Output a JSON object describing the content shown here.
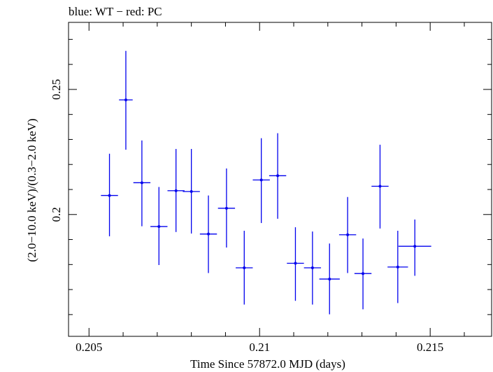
{
  "chart_data": {
    "type": "scatter",
    "title": "blue: WT − red: PC",
    "xlabel": "Time Since 57872.0 MJD (days)",
    "ylabel": "(2.0−10.0 keV)/(0.3−2.0 keV)",
    "xlim": [
      0.2044,
      0.2168
    ],
    "ylim": [
      0.1513,
      0.2768
    ],
    "x_ticks": [
      0.205,
      0.21,
      0.215
    ],
    "x_tick_labels": [
      "0.205",
      "0.21",
      "0.215"
    ],
    "y_ticks": [
      0.2,
      0.25
    ],
    "y_tick_labels": [
      "0.2",
      "0.25"
    ],
    "grid": false,
    "series": [
      {
        "color": "#0000ee",
        "points": [
          {
            "x": 0.2056,
            "y": 0.2076,
            "xerr": 0.00025,
            "ylo": 0.1913,
            "yhi": 0.2243
          },
          {
            "x": 0.20608,
            "y": 0.2458,
            "xerr": 0.0002,
            "ylo": 0.2259,
            "yhi": 0.2654
          },
          {
            "x": 0.20655,
            "y": 0.2127,
            "xerr": 0.00025,
            "ylo": 0.1953,
            "yhi": 0.2296
          },
          {
            "x": 0.20705,
            "y": 0.1952,
            "xerr": 0.00025,
            "ylo": 0.1798,
            "yhi": 0.211
          },
          {
            "x": 0.20755,
            "y": 0.2095,
            "xerr": 0.00025,
            "ylo": 0.193,
            "yhi": 0.2262
          },
          {
            "x": 0.208,
            "y": 0.2092,
            "xerr": 0.00025,
            "ylo": 0.1924,
            "yhi": 0.2262
          },
          {
            "x": 0.2085,
            "y": 0.1922,
            "xerr": 0.00025,
            "ylo": 0.1766,
            "yhi": 0.2076
          },
          {
            "x": 0.20903,
            "y": 0.2025,
            "xerr": 0.00025,
            "ylo": 0.1868,
            "yhi": 0.2184
          },
          {
            "x": 0.20955,
            "y": 0.1787,
            "xerr": 0.00025,
            "ylo": 0.164,
            "yhi": 0.1935
          },
          {
            "x": 0.21005,
            "y": 0.2138,
            "xerr": 0.00025,
            "ylo": 0.1966,
            "yhi": 0.2305
          },
          {
            "x": 0.21053,
            "y": 0.2155,
            "xerr": 0.00025,
            "ylo": 0.1983,
            "yhi": 0.2325
          },
          {
            "x": 0.21105,
            "y": 0.1805,
            "xerr": 0.00025,
            "ylo": 0.1655,
            "yhi": 0.1949
          },
          {
            "x": 0.21155,
            "y": 0.1787,
            "xerr": 0.00025,
            "ylo": 0.164,
            "yhi": 0.1932
          },
          {
            "x": 0.21205,
            "y": 0.1742,
            "xerr": 0.0003,
            "ylo": 0.1601,
            "yhi": 0.1884
          },
          {
            "x": 0.21258,
            "y": 0.1919,
            "xerr": 0.00025,
            "ylo": 0.1766,
            "yhi": 0.207
          },
          {
            "x": 0.21303,
            "y": 0.1764,
            "xerr": 0.00025,
            "ylo": 0.1621,
            "yhi": 0.1904
          },
          {
            "x": 0.21353,
            "y": 0.2113,
            "xerr": 0.00025,
            "ylo": 0.1944,
            "yhi": 0.2279
          },
          {
            "x": 0.21405,
            "y": 0.179,
            "xerr": 0.0003,
            "ylo": 0.1646,
            "yhi": 0.1935
          },
          {
            "x": 0.21455,
            "y": 0.1873,
            "xerr": 0.00048,
            "ylo": 0.1755,
            "yhi": 0.198
          }
        ]
      }
    ]
  }
}
